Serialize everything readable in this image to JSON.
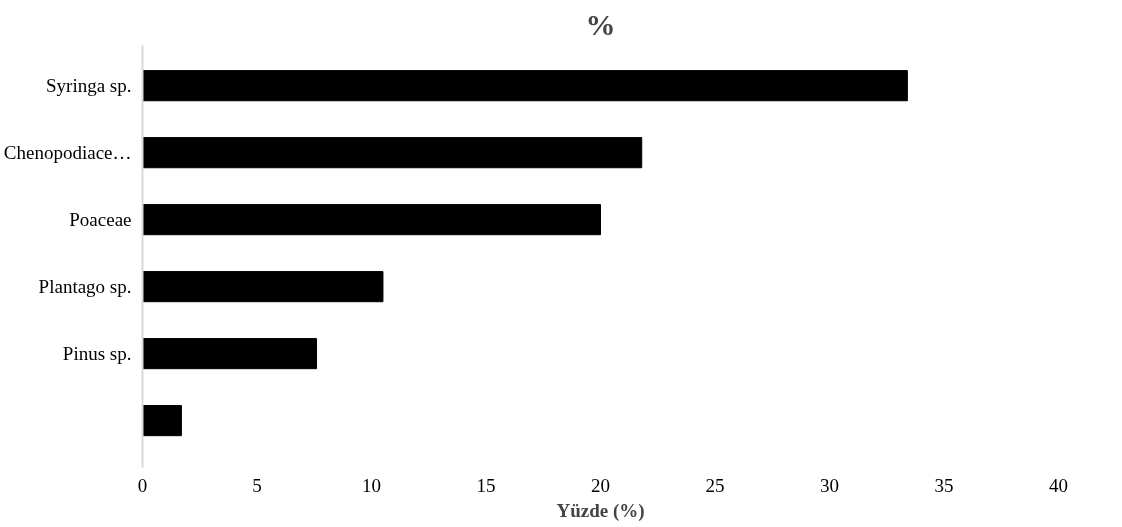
{
  "chart_data": {
    "type": "bar",
    "orientation": "horizontal",
    "title": "%",
    "xlabel": "Yüzde (%)",
    "categories": [
      "Syringa sp.",
      "Chenopodiace…",
      "Poaceae",
      "Plantago sp.",
      "Pinus sp.",
      null
    ],
    "values": [
      33.4,
      21.8,
      20.0,
      10.5,
      7.6,
      1.7
    ],
    "color": "#000000",
    "xlim": [
      0,
      40
    ],
    "xticks": [
      0,
      5,
      10,
      15,
      20,
      25,
      30,
      35,
      40
    ],
    "grid": false
  }
}
